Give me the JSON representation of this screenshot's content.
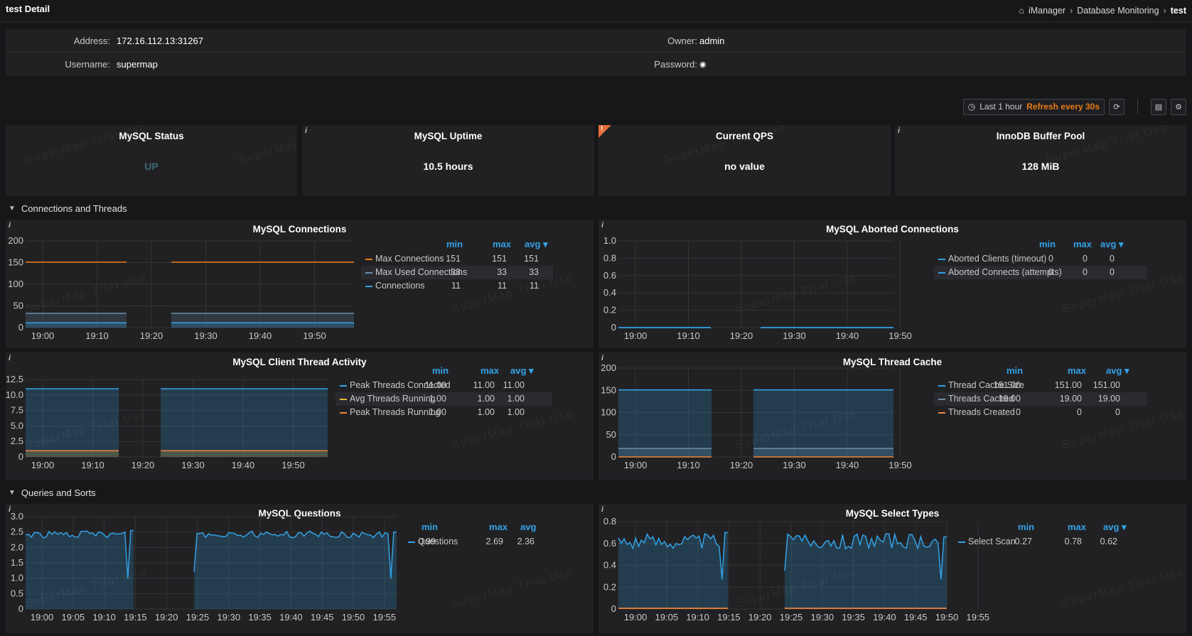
{
  "header": {
    "title": "test Detail",
    "breadcrumb": [
      "iManager",
      "Database Monitoring",
      "test"
    ]
  },
  "info": {
    "address_label": "Address:",
    "address": "172.16.112.13:31267",
    "owner_label": "Owner:",
    "owner": "admin",
    "username_label": "Username:",
    "username": "supermap",
    "password_label": "Password:"
  },
  "toolbar": {
    "range": "Last 1 hour",
    "refresh": "Refresh every 30s"
  },
  "watermark": "SuperMap Trial Use",
  "stats": [
    {
      "title": "MySQL Status",
      "value": "UP"
    },
    {
      "title": "MySQL Uptime",
      "value": "10.5 hours"
    },
    {
      "title": "Current QPS",
      "value": "no value"
    },
    {
      "title": "InnoDB Buffer Pool",
      "value": "128 MiB"
    }
  ],
  "sections": {
    "connections": "Connections and Threads",
    "queries": "Queries and Sorts"
  },
  "legend_headers": {
    "min": "min",
    "max": "max",
    "avg": "avg"
  },
  "colors": {
    "blue": "#33a2e5",
    "orange": "#eb7b18",
    "gray_blue": "#6b8fa8",
    "yellow": "#eab839",
    "salmon": "#ef843c"
  },
  "chart_data": [
    {
      "id": "mysql_connections",
      "title": "MySQL Connections",
      "type": "line",
      "ylim": [
        0,
        200
      ],
      "yticks": [
        "200",
        "150",
        "100",
        "50",
        "0"
      ],
      "xticks": [
        "19:00",
        "19:10",
        "19:20",
        "19:30",
        "19:40",
        "19:50"
      ],
      "series": [
        {
          "name": "Max Connections",
          "min": "151",
          "max": "151",
          "avg": "151",
          "value": 151,
          "color": "#eb7b18",
          "fill": false
        },
        {
          "name": "Max Used Connections",
          "min": "33",
          "max": "33",
          "avg": "33",
          "value": 33,
          "color": "#6b8fa8",
          "fill": true
        },
        {
          "name": "Connections",
          "min": "11",
          "max": "11",
          "avg": "11",
          "value": 11,
          "color": "#33a2e5",
          "fill": true
        }
      ]
    },
    {
      "id": "mysql_aborted",
      "title": "MySQL Aborted Connections",
      "type": "line",
      "ylim": [
        0,
        1
      ],
      "yticks": [
        "1.0",
        "0.8",
        "0.6",
        "0.4",
        "0.2",
        "0"
      ],
      "xticks": [
        "19:00",
        "19:10",
        "19:20",
        "19:30",
        "19:40",
        "19:50"
      ],
      "series": [
        {
          "name": "Aborted Clients (timeout)",
          "min": "0",
          "max": "0",
          "avg": "0",
          "value": 0,
          "color": "#33a2e5",
          "fill": false
        },
        {
          "name": "Aborted Connects (attempts)",
          "min": "0",
          "max": "0",
          "avg": "0",
          "value": 0,
          "color": "#33a2e5",
          "fill": false
        }
      ]
    },
    {
      "id": "client_thread",
      "title": "MySQL Client Thread Activity",
      "type": "area",
      "ylim": [
        0,
        12.5
      ],
      "yticks": [
        "12.5",
        "10.0",
        "7.5",
        "5.0",
        "2.5",
        "0"
      ],
      "xticks": [
        "19:00",
        "19:10",
        "19:20",
        "19:30",
        "19:40",
        "19:50"
      ],
      "series": [
        {
          "name": "Peak Threads Connected",
          "min": "11.00",
          "max": "11.00",
          "avg": "11.00",
          "value": 11,
          "color": "#33a2e5",
          "fill": true
        },
        {
          "name": "Avg Threads Running",
          "min": "1.00",
          "max": "1.00",
          "avg": "1.00",
          "value": 1,
          "color": "#eab839",
          "fill": true
        },
        {
          "name": "Peak Threads Running",
          "min": "1.00",
          "max": "1.00",
          "avg": "1.00",
          "value": 1,
          "color": "#ef843c",
          "fill": false
        }
      ]
    },
    {
      "id": "thread_cache",
      "title": "MySQL Thread Cache",
      "type": "area",
      "ylim": [
        0,
        200
      ],
      "yticks": [
        "200",
        "150",
        "100",
        "50",
        "0"
      ],
      "xticks": [
        "19:00",
        "19:10",
        "19:20",
        "19:30",
        "19:40",
        "19:50"
      ],
      "series": [
        {
          "name": "Thread Cache Size",
          "min": "151.00",
          "max": "151.00",
          "avg": "151.00",
          "value": 151,
          "color": "#33a2e5",
          "fill": true
        },
        {
          "name": "Threads Cached",
          "min": "19.00",
          "max": "19.00",
          "avg": "19.00",
          "value": 19,
          "color": "#6b8fa8",
          "fill": true
        },
        {
          "name": "Threads Created",
          "min": "0",
          "max": "0",
          "avg": "0",
          "value": 0,
          "color": "#ef843c",
          "fill": false
        }
      ]
    },
    {
      "id": "questions",
      "title": "MySQL Questions",
      "type": "area",
      "ylim": [
        0,
        3
      ],
      "yticks": [
        "3.0",
        "2.5",
        "2.0",
        "1.5",
        "1.0",
        "0.5",
        "0"
      ],
      "xticks": [
        "19:00",
        "19:05",
        "19:10",
        "19:15",
        "19:20",
        "19:25",
        "19:30",
        "19:35",
        "19:40",
        "19:45",
        "19:50",
        "19:55"
      ],
      "series": [
        {
          "name": "Questions",
          "min": "0.99",
          "max": "2.69",
          "avg": "2.36",
          "color": "#33a2e5",
          "fill": true
        }
      ]
    },
    {
      "id": "select_types",
      "title": "MySQL Select Types",
      "type": "area",
      "ylim": [
        0,
        0.8
      ],
      "yticks": [
        "0.8",
        "0.6",
        "0.4",
        "0.2",
        "0"
      ],
      "xticks": [
        "19:00",
        "19:05",
        "19:10",
        "19:15",
        "19:20",
        "19:25",
        "19:30",
        "19:35",
        "19:40",
        "19:45",
        "19:50",
        "19:55"
      ],
      "series": [
        {
          "name": "Select Scan",
          "min": "0.27",
          "max": "0.78",
          "avg": "0.62",
          "color": "#33a2e5",
          "fill": true
        }
      ]
    }
  ]
}
